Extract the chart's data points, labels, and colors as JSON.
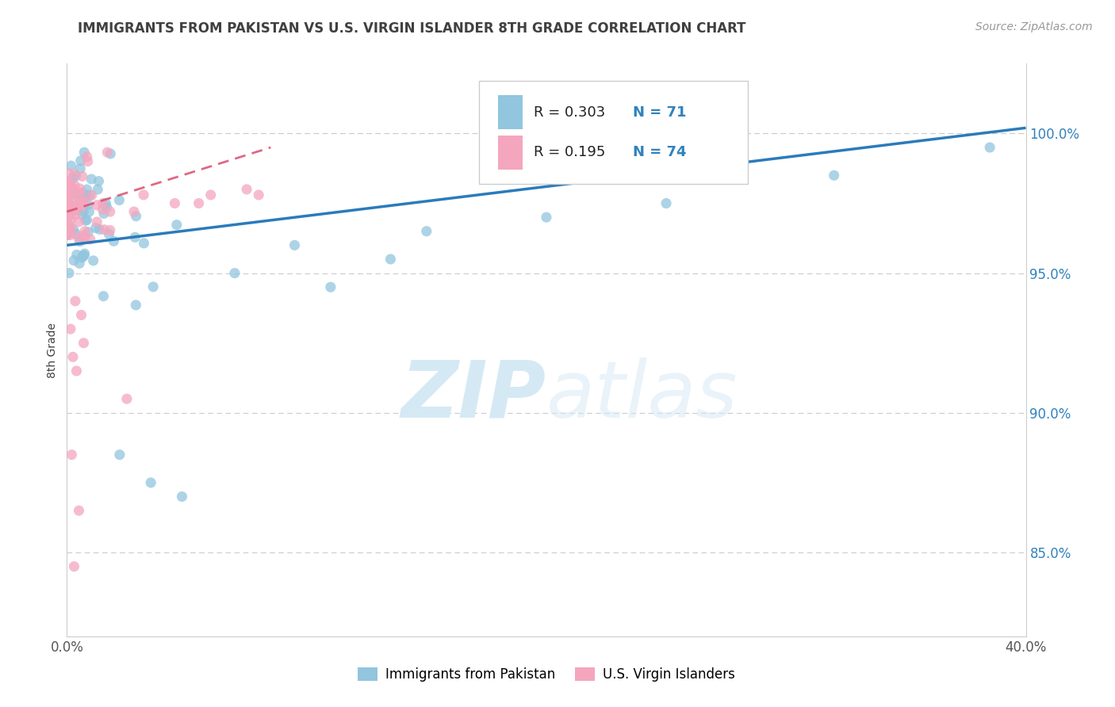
{
  "title": "IMMIGRANTS FROM PAKISTAN VS U.S. VIRGIN ISLANDER 8TH GRADE CORRELATION CHART",
  "source": "Source: ZipAtlas.com",
  "legend_label1": "Immigrants from Pakistan",
  "legend_label2": "U.S. Virgin Islanders",
  "R1": 0.303,
  "N1": 71,
  "R2": 0.195,
  "N2": 74,
  "color_blue": "#92c5de",
  "color_pink": "#f4a6be",
  "trend_color_blue": "#2b7bba",
  "trend_color_pink": "#d94f6e",
  "watermark_color": "#d5e9f5",
  "xlim": [
    0.0,
    40.0
  ],
  "ylim": [
    82.0,
    102.5
  ],
  "yticks": [
    85.0,
    90.0,
    95.0,
    100.0
  ],
  "grid_color": "#cccccc",
  "bg_color": "#ffffff",
  "title_color": "#404040",
  "source_color": "#999999",
  "ytick_color": "#3182bd",
  "xtick_color": "#555555",
  "blue_trend_x0": 0.0,
  "blue_trend_y0": 96.0,
  "blue_trend_x1": 40.0,
  "blue_trend_y1": 100.2,
  "pink_trend_x0": 0.0,
  "pink_trend_y0": 97.2,
  "pink_trend_x1": 8.5,
  "pink_trend_y1": 99.5
}
